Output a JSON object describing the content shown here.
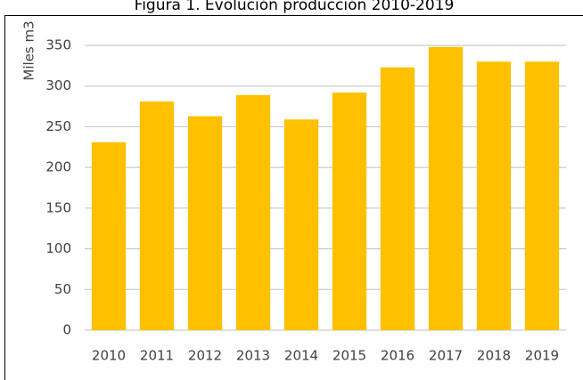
{
  "chart_data": {
    "type": "bar",
    "title": "Figura 1. Evolución producción 2010-2019",
    "y_label": "Miles m3",
    "categories": [
      "2010",
      "2011",
      "2012",
      "2013",
      "2014",
      "2015",
      "2016",
      "2017",
      "2018",
      "2019"
    ],
    "values": [
      231,
      281,
      263,
      289,
      259,
      292,
      323,
      348,
      330,
      330
    ],
    "color": "#ffc000",
    "ylim": [
      0,
      350
    ],
    "yticks": [
      0,
      50,
      100,
      150,
      200,
      250,
      300,
      350
    ],
    "grid": true
  }
}
